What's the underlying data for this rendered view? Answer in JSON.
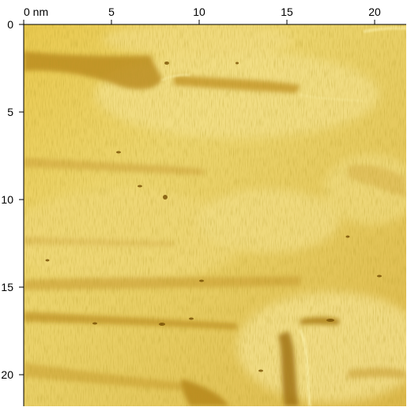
{
  "image": {
    "description_kind": "scanning probe topography micrograph",
    "colors": {
      "base": "#e6c85a",
      "highlight": "#f6e592",
      "shadow": "#a0730f",
      "axis": "#000000"
    }
  },
  "axes": {
    "unit": "nm",
    "range_nm": [
      0,
      21.8
    ],
    "x": {
      "ticks": [
        {
          "value": 0,
          "label": "0 nm"
        },
        {
          "value": 5,
          "label": "5"
        },
        {
          "value": 10,
          "label": "10"
        },
        {
          "value": 15,
          "label": "15"
        },
        {
          "value": 20,
          "label": "20"
        }
      ]
    },
    "y": {
      "ticks": [
        {
          "value": 0,
          "label": "0"
        },
        {
          "value": 5,
          "label": "5"
        },
        {
          "value": 10,
          "label": "10"
        },
        {
          "value": 15,
          "label": "15"
        },
        {
          "value": 20,
          "label": "20"
        }
      ]
    }
  }
}
